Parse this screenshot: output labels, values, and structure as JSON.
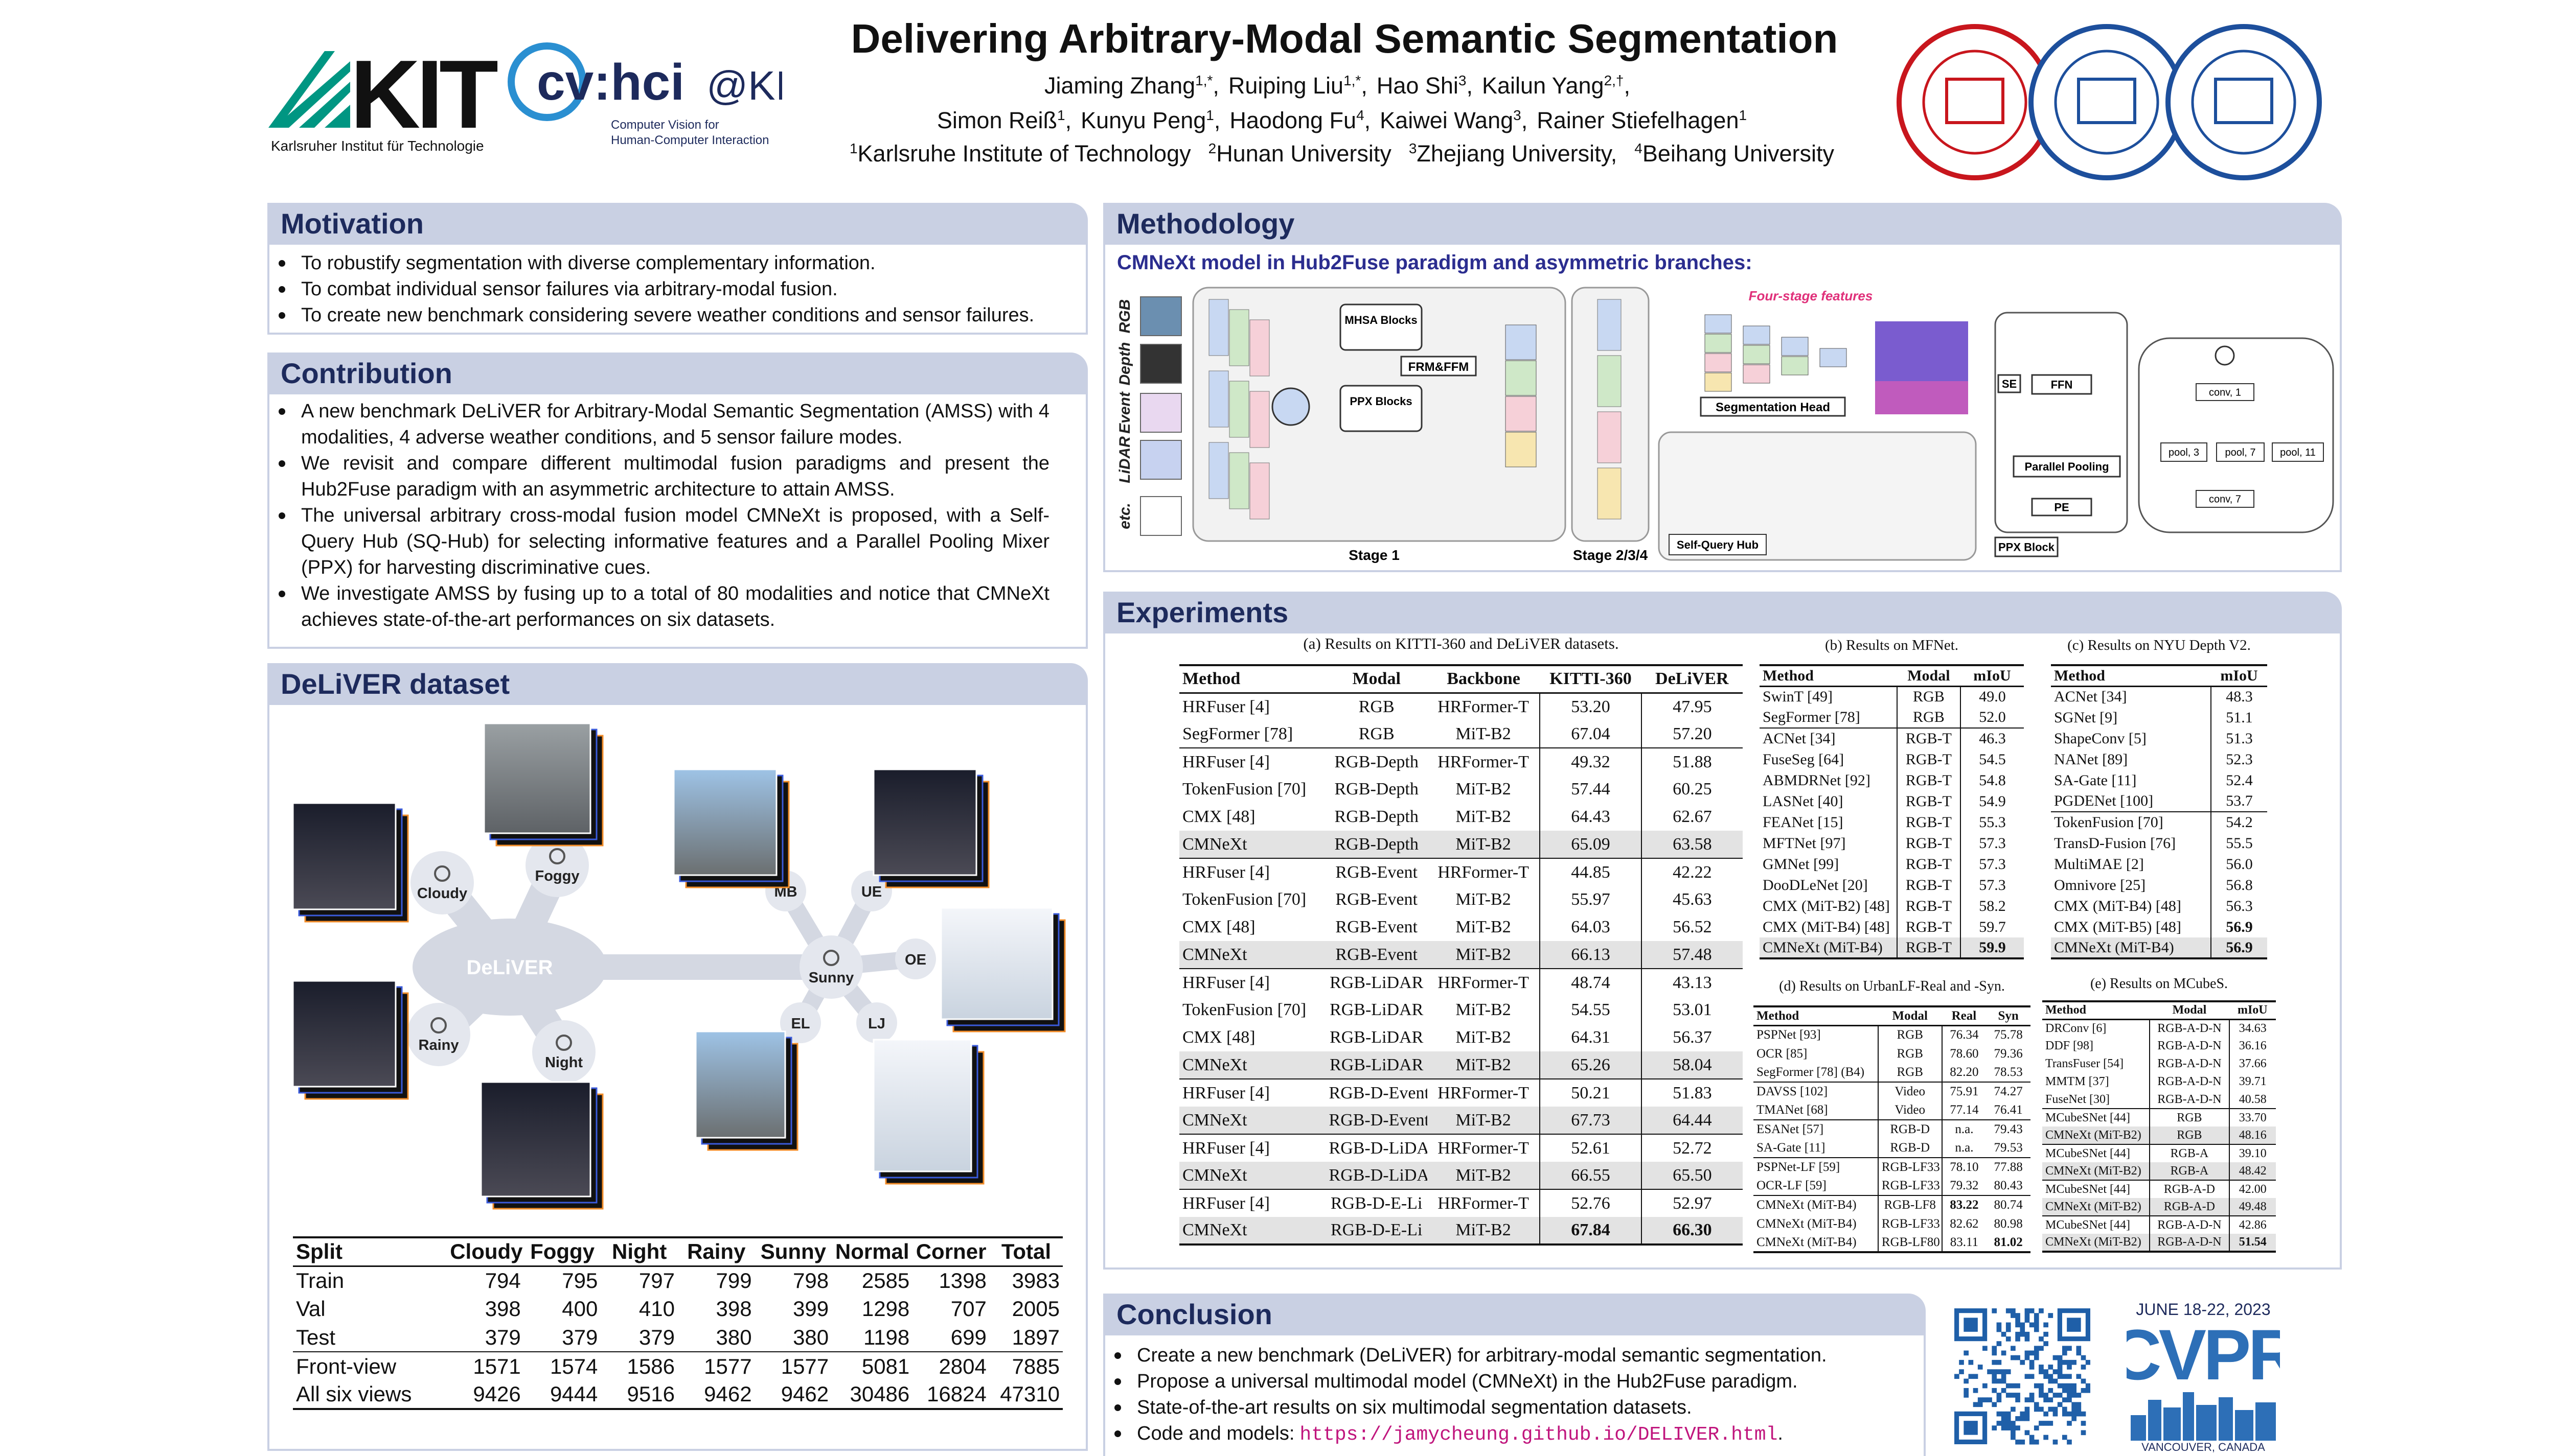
{
  "header": {
    "title": "Delivering Arbitrary-Modal Semantic Segmentation",
    "authors": [
      [
        {
          "name": "Jiaming Zhang",
          "sup": "1,*",
          "sep": ","
        },
        {
          "name": "Ruiping Liu",
          "sup": "1,*",
          "sep": ","
        },
        {
          "name": "Hao Shi",
          "sup": "3",
          "sep": ","
        },
        {
          "name": "Kailun Yang",
          "sup": "2,†",
          "sep": ","
        }
      ],
      [
        {
          "name": "Simon Reiß",
          "sup": "1",
          "sep": ","
        },
        {
          "name": "Kunyu Peng",
          "sup": "1",
          "sep": ","
        },
        {
          "name": "Haodong Fu",
          "sup": "4",
          "sep": ","
        },
        {
          "name": "Kaiwei Wang",
          "sup": "3",
          "sep": ","
        },
        {
          "name": "Rainer Stiefelhagen",
          "sup": "1"
        }
      ]
    ],
    "affiliations": [
      {
        "sup": "1",
        "name": "Karlsruhe Institute of Technology"
      },
      {
        "sup": "2",
        "name": "Hunan University"
      },
      {
        "sup": "3",
        "name": "Zhejiang University,"
      },
      {
        "sup": "4",
        "name": "Beihang University"
      }
    ],
    "logos": {
      "kit": "KIT",
      "kit_name": "Karlsruher Institut für Technologie",
      "cvhci": "cv:hci",
      "cvhci_at": "@KIT",
      "cvhci_caption": [
        "Computer Vision for",
        "Human-Computer Interaction"
      ]
    }
  },
  "motivation": {
    "title": "Motivation",
    "bullets": [
      "To robustify segmentation with diverse complementary information.",
      "To combat individual sensor failures via arbitrary-modal fusion.",
      "To create new benchmark considering severe weather conditions and sensor failures."
    ]
  },
  "contribution": {
    "title": "Contribution",
    "bullets": [
      "A new benchmark DeLiVER for Arbitrary-Modal Semantic Segmentation (AMSS) with 4 modalities, 4 adverse weather conditions, and 5 sensor failure modes.",
      "We revisit and compare different multimodal fusion paradigms and present the Hub2Fuse paradigm with an asymmetric architecture to attain AMSS.",
      "The universal arbitrary cross-modal fusion model CMNeXt is proposed, with a Self-Query Hub (SQ-Hub) for selecting informative features and a Parallel Pooling Mixer (PPX) for harvesting discriminative cues.",
      "We investigate AMSS by fusing up to a total of 80 modalities and notice that CMNeXt achieves state-of-the-art performances on six datasets."
    ]
  },
  "dataset": {
    "title": "DeLiVER dataset",
    "diagram": {
      "center": "DeLiVER",
      "conditions": [
        "Cloudy",
        "Foggy",
        "Rainy",
        "Night",
        "Sunny"
      ],
      "failures": [
        "MB",
        "UE",
        "OE",
        "EL",
        "LJ"
      ]
    },
    "table": {
      "header": [
        "Split",
        "Cloudy",
        "Foggy",
        "Night",
        "Rainy",
        "Sunny",
        "Normal",
        "Corner",
        "Total"
      ],
      "rows": [
        [
          "Train",
          "794",
          "795",
          "797",
          "799",
          "798",
          "2585",
          "1398",
          "3983"
        ],
        [
          "Val",
          "398",
          "400",
          "410",
          "398",
          "399",
          "1298",
          "707",
          "2005"
        ],
        [
          "Test",
          "379",
          "379",
          "379",
          "380",
          "380",
          "1198",
          "699",
          "1897"
        ],
        [
          "Front-view",
          "1571",
          "1574",
          "1586",
          "1577",
          "1577",
          "5081",
          "2804",
          "7885"
        ],
        [
          "All six views",
          "9426",
          "9444",
          "9516",
          "9462",
          "9462",
          "30486",
          "16824",
          "47310"
        ]
      ]
    }
  },
  "methodology": {
    "title": "Methodology",
    "subtitle": "CMNeXt model in Hub2Fuse paradigm and asymmetric branches:",
    "diagram": {
      "modalities": [
        "RGB",
        "Depth",
        "Event",
        "LiDAR",
        "etc."
      ],
      "mhsa": "MHSA Blocks",
      "ppx": "PPX Blocks",
      "frm": "FRM&FFM",
      "stage1": "Stage 1",
      "stage234": "Stage 2/3/4",
      "features": "Four-stage features",
      "seg_head": "Segmentation Head",
      "sq_hub": "Self-Query Hub",
      "se": "SE",
      "ffn": "FFN",
      "pooling": "Parallel Pooling",
      "pe": "PE",
      "ppx_block": "PPX Block",
      "convs": [
        "conv, 1",
        "pool, 3",
        "pool, 7",
        "pool, 11",
        "conv, 7"
      ]
    }
  },
  "experiments": {
    "title": "Experiments",
    "tables": [
      {
        "caption": "(a) Results on KITTI-360 and DeLiVER datasets.",
        "header": [
          "Method",
          "Modal",
          "Backbone",
          "KITTI-360",
          "DeLiVER"
        ],
        "rows": [
          [
            "HRFuser [4]",
            "RGB",
            "HRFormer-T",
            "53.20",
            "47.95"
          ],
          [
            "SegFormer [78]",
            "RGB",
            "MiT-B2",
            "67.04",
            "57.20"
          ],
          [
            "HRFuser [4]",
            "RGB-Depth",
            "HRFormer-T",
            "49.32",
            "51.88"
          ],
          [
            "TokenFusion [70]",
            "RGB-Depth",
            "MiT-B2",
            "57.44",
            "60.25"
          ],
          [
            "CMX [48]",
            "RGB-Depth",
            "MiT-B2",
            "64.43",
            "62.67"
          ],
          [
            "CMNeXt",
            "RGB-Depth",
            "MiT-B2",
            "65.09",
            "63.58"
          ],
          [
            "HRFuser [4]",
            "RGB-Event",
            "HRFormer-T",
            "44.85",
            "42.22"
          ],
          [
            "TokenFusion [70]",
            "RGB-Event",
            "MiT-B2",
            "55.97",
            "45.63"
          ],
          [
            "CMX [48]",
            "RGB-Event",
            "MiT-B2",
            "64.03",
            "56.52"
          ],
          [
            "CMNeXt",
            "RGB-Event",
            "MiT-B2",
            "66.13",
            "57.48"
          ],
          [
            "HRFuser [4]",
            "RGB-LiDAR",
            "HRFormer-T",
            "48.74",
            "43.13"
          ],
          [
            "TokenFusion [70]",
            "RGB-LiDAR",
            "MiT-B2",
            "54.55",
            "53.01"
          ],
          [
            "CMX [48]",
            "RGB-LiDAR",
            "MiT-B2",
            "64.31",
            "56.37"
          ],
          [
            "CMNeXt",
            "RGB-LiDAR",
            "MiT-B2",
            "65.26",
            "58.04"
          ],
          [
            "HRFuser [4]",
            "RGB-D-Event",
            "HRFormer-T",
            "50.21",
            "51.83"
          ],
          [
            "CMNeXt",
            "RGB-D-Event",
            "MiT-B2",
            "67.73",
            "64.44"
          ],
          [
            "HRFuser [4]",
            "RGB-D-LiDAR",
            "HRFormer-T",
            "52.61",
            "52.72"
          ],
          [
            "CMNeXt",
            "RGB-D-LiDAR",
            "MiT-B2",
            "66.55",
            "65.50"
          ],
          [
            "HRFuser [4]",
            "RGB-D-E-Li",
            "HRFormer-T",
            "52.76",
            "52.97"
          ],
          [
            "CMNeXt",
            "RGB-D-E-Li",
            "MiT-B2",
            "67.84",
            "66.30"
          ]
        ]
      },
      {
        "caption": "(b) Results on MFNet.",
        "header": [
          "Method",
          "Modal",
          "mIoU"
        ],
        "rows": [
          [
            "SwinT [49]",
            "RGB",
            "49.0"
          ],
          [
            "SegFormer [78]",
            "RGB",
            "52.0"
          ],
          [
            "ACNet [34]",
            "RGB-T",
            "46.3"
          ],
          [
            "FuseSeg [64]",
            "RGB-T",
            "54.5"
          ],
          [
            "ABMDRNet [92]",
            "RGB-T",
            "54.8"
          ],
          [
            "LASNet [40]",
            "RGB-T",
            "54.9"
          ],
          [
            "FEANet [15]",
            "RGB-T",
            "55.3"
          ],
          [
            "MFTNet [97]",
            "RGB-T",
            "57.3"
          ],
          [
            "GMNet [99]",
            "RGB-T",
            "57.3"
          ],
          [
            "DooDLeNet [20]",
            "RGB-T",
            "57.3"
          ],
          [
            "CMX (MiT-B2) [48]",
            "RGB-T",
            "58.2"
          ],
          [
            "CMX (MiT-B4) [48]",
            "RGB-T",
            "59.7"
          ],
          [
            "CMNeXt (MiT-B4)",
            "RGB-T",
            "59.9"
          ]
        ]
      },
      {
        "caption": "(c) Results on NYU Depth V2.",
        "header": [
          "Method",
          "mIoU"
        ],
        "rows": [
          [
            "ACNet [34]",
            "48.3"
          ],
          [
            "SGNet [9]",
            "51.1"
          ],
          [
            "ShapeConv [5]",
            "51.3"
          ],
          [
            "NANet [89]",
            "52.3"
          ],
          [
            "SA-Gate [11]",
            "52.4"
          ],
          [
            "PGDENet [100]",
            "53.7"
          ],
          [
            "TokenFusion [70]",
            "54.2"
          ],
          [
            "TransD-Fusion [76]",
            "55.5"
          ],
          [
            "MultiMAE [2]",
            "56.0"
          ],
          [
            "Omnivore [25]",
            "56.8"
          ],
          [
            "CMX (MiT-B4) [48]",
            "56.3"
          ],
          [
            "CMX (MiT-B5) [48]",
            "56.9"
          ],
          [
            "CMNeXt (MiT-B4)",
            "56.9"
          ]
        ]
      },
      {
        "caption": "(d) Results on UrbanLF-Real and -Syn.",
        "header": [
          "Method",
          "Modal",
          "Real",
          "Syn"
        ],
        "rows": [
          [
            "PSPNet [93]",
            "RGB",
            "76.34",
            "75.78"
          ],
          [
            "OCR [85]",
            "RGB",
            "78.60",
            "79.36"
          ],
          [
            "SegFormer [78] (B4)",
            "RGB",
            "82.20",
            "78.53"
          ],
          [
            "DAVSS [102]",
            "Video",
            "75.91",
            "74.27"
          ],
          [
            "TMANet [68]",
            "Video",
            "77.14",
            "76.41"
          ],
          [
            "ESANet [57]",
            "RGB-D",
            "n.a.",
            "79.43"
          ],
          [
            "SA-Gate [11]",
            "RGB-D",
            "n.a.",
            "79.53"
          ],
          [
            "PSPNet-LF [59]",
            "RGB-LF33",
            "78.10",
            "77.88"
          ],
          [
            "OCR-LF [59]",
            "RGB-LF33",
            "79.32",
            "80.43"
          ],
          [
            "CMNeXt (MiT-B4)",
            "RGB-LF8",
            "83.22",
            "80.74"
          ],
          [
            "CMNeXt (MiT-B4)",
            "RGB-LF33",
            "82.62",
            "80.98"
          ],
          [
            "CMNeXt (MiT-B4)",
            "RGB-LF80",
            "83.11",
            "81.02"
          ]
        ]
      },
      {
        "caption": "(e) Results on MCubeS.",
        "header": [
          "Method",
          "Modal",
          "mIoU"
        ],
        "rows": [
          [
            "DRConv [6]",
            "RGB-A-D-N",
            "34.63"
          ],
          [
            "DDF [98]",
            "RGB-A-D-N",
            "36.16"
          ],
          [
            "TransFuser [54]",
            "RGB-A-D-N",
            "37.66"
          ],
          [
            "MMTM [37]",
            "RGB-A-D-N",
            "39.71"
          ],
          [
            "FuseNet [30]",
            "RGB-A-D-N",
            "40.58"
          ],
          [
            "MCubeSNet [44]",
            "RGB",
            "33.70"
          ],
          [
            "CMNeXt (MiT-B2)",
            "RGB",
            "48.16"
          ],
          [
            "MCubeSNet [44]",
            "RGB-A",
            "39.10"
          ],
          [
            "CMNeXt (MiT-B2)",
            "RGB-A",
            "48.42"
          ],
          [
            "MCubeSNet [44]",
            "RGB-A-D",
            "42.00"
          ],
          [
            "CMNeXt (MiT-B2)",
            "RGB-A-D",
            "49.48"
          ],
          [
            "MCubeSNet [44]",
            "RGB-A-D-N",
            "42.86"
          ],
          [
            "CMNeXt (MiT-B2)",
            "RGB-A-D-N",
            "51.54"
          ]
        ]
      }
    ]
  },
  "conclusion": {
    "title": "Conclusion",
    "bullets": [
      "Create a new benchmark (DeLiVER) for arbitrary-modal semantic segmentation.",
      "Propose a universal multimodal model (CMNeXt) in the Hub2Fuse paradigm.",
      "State-of-the-art results on six multimodal segmentation datasets."
    ],
    "code": {
      "text": "Code and models:",
      "link": "https://jamycheung.github.io/DELIVER.html",
      "end": "."
    }
  },
  "cvpr": {
    "dates": "JUNE 18-22, 2023",
    "name": "CVPR",
    "location": "VANCOUVER, CANADA"
  }
}
